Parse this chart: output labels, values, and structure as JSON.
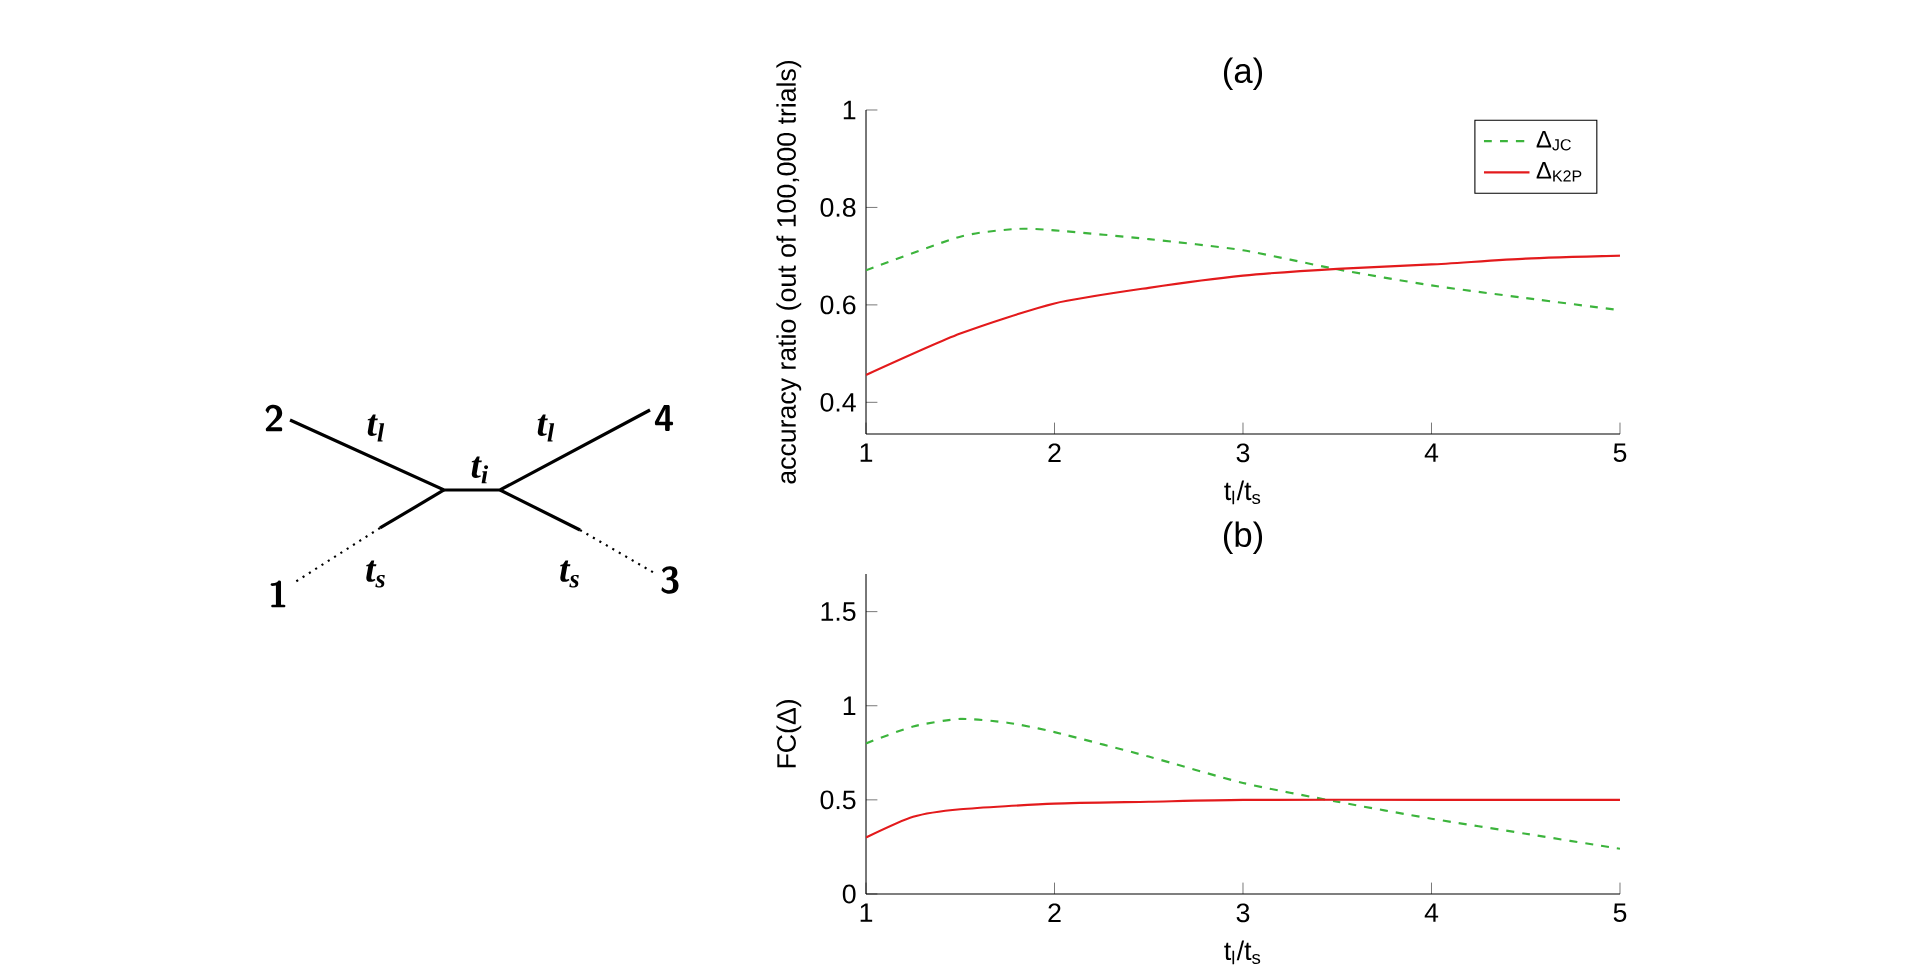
{
  "chart_data": [
    {
      "type": "line",
      "title": "(a)",
      "xlabel": "t$_{l}$/t$_{s}$",
      "ylabel": "accuracy ratio (out of 100,000 trials)",
      "xlim": [
        1,
        5
      ],
      "ylim": [
        0.335,
        1
      ],
      "xticks": [
        1,
        2,
        3,
        4,
        5
      ],
      "yticks": [
        0.4,
        0.6,
        0.8,
        1
      ],
      "legend": "top right",
      "series": [
        {
          "name": "Δ$_{JC}$",
          "color": "#3cb43c",
          "line_style": "dashed",
          "x": [
            1,
            1.5,
            1.8,
            2,
            2.5,
            3,
            3.5,
            4,
            4.5,
            5
          ],
          "values": [
            0.671,
            0.74,
            0.756,
            0.753,
            0.735,
            0.712,
            0.673,
            0.64,
            0.614,
            0.589
          ]
        },
        {
          "name": "Δ$_{K2P}$",
          "color": "#e31a1c",
          "line_style": "solid",
          "x": [
            1,
            1.5,
            2,
            2.5,
            3,
            3.5,
            4,
            4.5,
            5
          ],
          "values": [
            0.456,
            0.541,
            0.603,
            0.635,
            0.66,
            0.674,
            0.683,
            0.695,
            0.701
          ]
        }
      ]
    },
    {
      "type": "line",
      "title": "(b)",
      "xlabel": "t$_{l}$/t$_{s}$",
      "ylabel": "FC(Δ)",
      "xlim": [
        1,
        5
      ],
      "ylim": [
        0,
        1.7
      ],
      "xticks": [
        1,
        2,
        3,
        4,
        5
      ],
      "yticks": [
        0,
        0.5,
        1,
        1.5
      ],
      "series": [
        {
          "color": "#3cb43c",
          "line_style": "dashed",
          "x": [
            1,
            1.25,
            1.5,
            1.75,
            2,
            2.5,
            3,
            3.5,
            4,
            4.5,
            5
          ],
          "values": [
            0.8,
            0.89,
            0.93,
            0.91,
            0.86,
            0.73,
            0.59,
            0.49,
            0.4,
            0.32,
            0.24
          ]
        },
        {
          "color": "#e31a1c",
          "line_style": "solid",
          "x": [
            1,
            1.25,
            1.5,
            2,
            2.5,
            3,
            4,
            5
          ],
          "values": [
            0.3,
            0.41,
            0.45,
            0.48,
            0.49,
            0.5,
            0.5,
            0.5
          ]
        }
      ]
    },
    {
      "type": "other",
      "annotations": [
        "2",
        "4",
        "1",
        "3",
        "t$_{l}$",
        "t$_{l}$",
        "t$_{i}$",
        "t$_{s}$",
        "t$_{s}$"
      ]
    }
  ]
}
